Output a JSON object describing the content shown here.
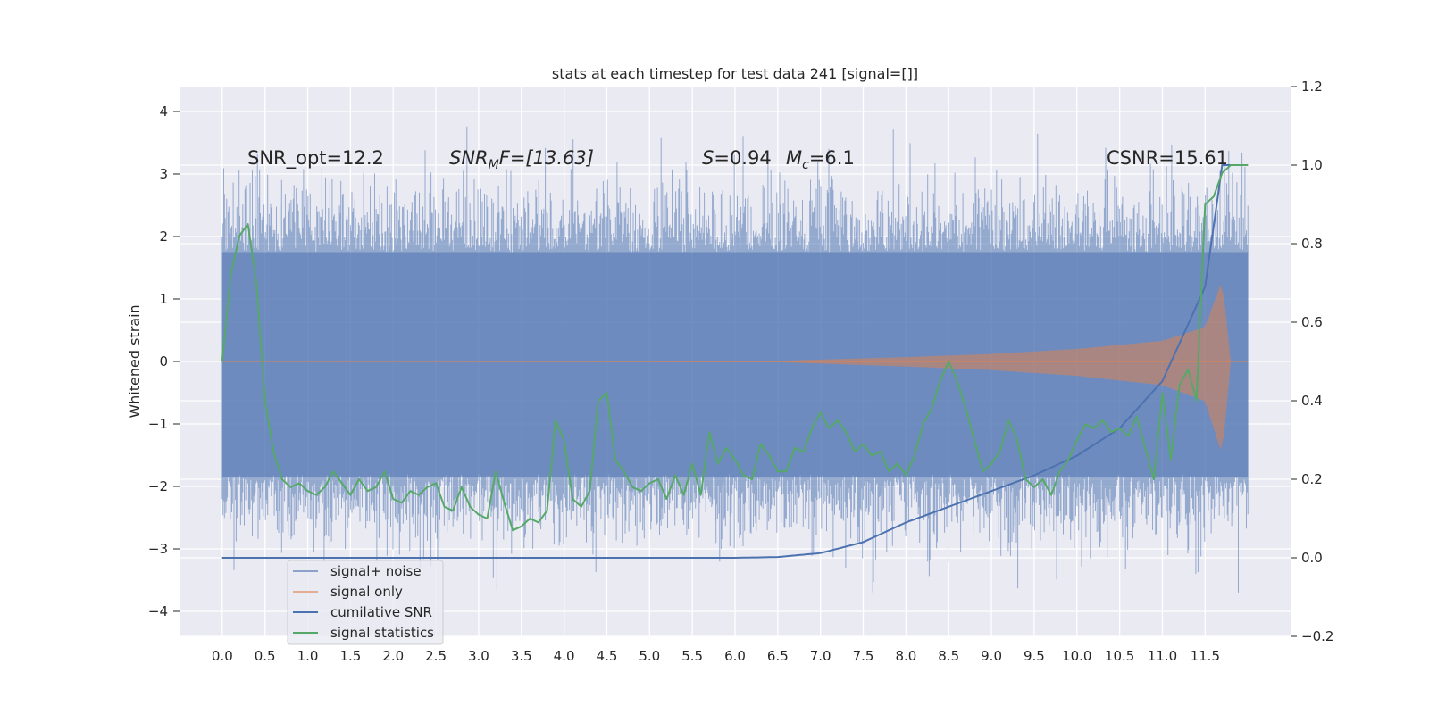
{
  "chart_data": {
    "type": "line",
    "title": "stats at each timestep for test data 241 [signal=[]]",
    "ylabel": "Whitened strain",
    "xlim": [
      -0.5,
      12.5
    ],
    "ylim": [
      -4.4,
      4.4
    ],
    "y2lim": [
      -0.2,
      1.2
    ],
    "x_ticks": [
      "0.0",
      "0.5",
      "1.0",
      "1.5",
      "2.0",
      "2.5",
      "3.0",
      "3.5",
      "4.0",
      "4.5",
      "5.0",
      "5.5",
      "6.0",
      "6.5",
      "7.0",
      "7.5",
      "8.0",
      "8.5",
      "9.0",
      "9.5",
      "10.0",
      "10.5",
      "11.0",
      "11.5"
    ],
    "y_ticks": [
      "−4",
      "−3",
      "−2",
      "−1",
      "0",
      "1",
      "2",
      "3",
      "4"
    ],
    "y2_ticks": [
      "−0.2",
      "0.0",
      "0.2",
      "0.4",
      "0.6",
      "0.8",
      "1.0",
      "1.2"
    ],
    "grid": true,
    "legend_position": "lower-left",
    "annotations": {
      "snr_opt": "SNR_opt=12.2",
      "snr_mf_main": "SNR",
      "snr_mf_sub": "M",
      "snr_mf_rest": "F=[13.63]",
      "s_main": "S",
      "s_rest": "=0.94",
      "mc_main": "M",
      "mc_sub": "c",
      "mc_rest": "=6.1",
      "csnr": "CSNR=15.61"
    },
    "series": [
      {
        "name": "signal+ noise",
        "color": "#4c72b0",
        "axis": "left",
        "x_range": [
          0,
          12
        ],
        "band_typical": [
          -1.9,
          1.8
        ],
        "peak_range": [
          -4.1,
          3.8
        ]
      },
      {
        "name": "signal only",
        "color": "#dd8452",
        "axis": "left",
        "x_range": [
          0,
          12
        ],
        "amplitude_profile": [
          [
            0,
            0
          ],
          [
            6.5,
            0.01
          ],
          [
            7,
            0.03
          ],
          [
            8,
            0.07
          ],
          [
            9,
            0.12
          ],
          [
            10,
            0.2
          ],
          [
            11,
            0.33
          ],
          [
            11.5,
            0.55
          ],
          [
            11.7,
            1.3
          ],
          [
            11.8,
            0
          ]
        ]
      },
      {
        "name": "cumilative SNR",
        "color": "#4c72b0",
        "axis": "right",
        "x": [
          0,
          6,
          6.5,
          7,
          7.5,
          8,
          8.5,
          9,
          9.5,
          10,
          10.5,
          11,
          11.5,
          11.7,
          12
        ],
        "values": [
          0,
          0,
          0.002,
          0.012,
          0.04,
          0.09,
          0.13,
          0.17,
          0.21,
          0.26,
          0.33,
          0.45,
          0.69,
          1.0,
          1.0
        ]
      },
      {
        "name": "signal statistics",
        "color": "#55a868",
        "axis": "right",
        "x": [
          0,
          0.1,
          0.2,
          0.3,
          0.4,
          0.5,
          0.6,
          0.7,
          0.8,
          0.9,
          1.0,
          1.1,
          1.2,
          1.3,
          1.4,
          1.5,
          1.6,
          1.7,
          1.8,
          1.9,
          2.0,
          2.1,
          2.2,
          2.3,
          2.4,
          2.5,
          2.6,
          2.7,
          2.8,
          2.9,
          3.0,
          3.1,
          3.2,
          3.3,
          3.4,
          3.5,
          3.6,
          3.7,
          3.8,
          3.9,
          4.0,
          4.1,
          4.2,
          4.3,
          4.4,
          4.5,
          4.6,
          4.7,
          4.8,
          4.9,
          5.0,
          5.1,
          5.2,
          5.3,
          5.4,
          5.5,
          5.6,
          5.7,
          5.8,
          5.9,
          6.0,
          6.1,
          6.2,
          6.3,
          6.4,
          6.5,
          6.6,
          6.7,
          6.8,
          6.9,
          7.0,
          7.1,
          7.2,
          7.3,
          7.4,
          7.5,
          7.6,
          7.7,
          7.8,
          7.9,
          8.0,
          8.1,
          8.2,
          8.3,
          8.4,
          8.5,
          8.6,
          8.7,
          8.8,
          8.9,
          9.0,
          9.1,
          9.2,
          9.3,
          9.4,
          9.5,
          9.6,
          9.7,
          9.8,
          9.9,
          10.0,
          10.1,
          10.2,
          10.3,
          10.4,
          10.5,
          10.6,
          10.7,
          10.8,
          10.9,
          11.0,
          11.1,
          11.2,
          11.3,
          11.4,
          11.5,
          11.6,
          11.7,
          11.8,
          11.9,
          12.0
        ],
        "values": [
          0.5,
          0.72,
          0.82,
          0.85,
          0.7,
          0.4,
          0.27,
          0.2,
          0.18,
          0.19,
          0.17,
          0.16,
          0.18,
          0.22,
          0.19,
          0.16,
          0.2,
          0.17,
          0.18,
          0.22,
          0.15,
          0.14,
          0.17,
          0.16,
          0.18,
          0.19,
          0.13,
          0.12,
          0.18,
          0.13,
          0.11,
          0.1,
          0.22,
          0.14,
          0.07,
          0.08,
          0.1,
          0.09,
          0.12,
          0.35,
          0.3,
          0.15,
          0.13,
          0.17,
          0.4,
          0.42,
          0.25,
          0.22,
          0.18,
          0.17,
          0.19,
          0.2,
          0.15,
          0.21,
          0.16,
          0.24,
          0.16,
          0.32,
          0.24,
          0.28,
          0.25,
          0.21,
          0.2,
          0.29,
          0.26,
          0.22,
          0.22,
          0.28,
          0.27,
          0.33,
          0.37,
          0.33,
          0.35,
          0.32,
          0.27,
          0.29,
          0.26,
          0.27,
          0.22,
          0.24,
          0.21,
          0.26,
          0.34,
          0.38,
          0.45,
          0.5,
          0.45,
          0.38,
          0.3,
          0.22,
          0.24,
          0.27,
          0.35,
          0.3,
          0.2,
          0.18,
          0.2,
          0.16,
          0.22,
          0.25,
          0.3,
          0.34,
          0.33,
          0.35,
          0.32,
          0.33,
          0.31,
          0.36,
          0.28,
          0.2,
          0.42,
          0.25,
          0.44,
          0.48,
          0.4,
          0.9,
          0.92,
          0.98,
          1.0,
          1.0,
          1.0
        ]
      }
    ]
  }
}
